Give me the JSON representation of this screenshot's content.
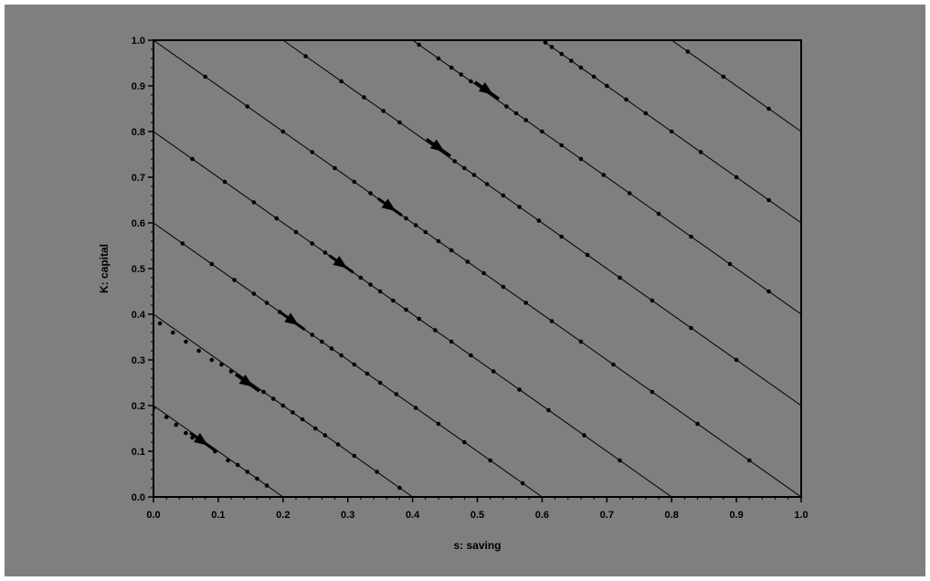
{
  "chart_data": {
    "type": "line",
    "title": "",
    "xlabel": "s: saving",
    "ylabel": "K: capital",
    "xlim": [
      0.0,
      1.0
    ],
    "ylim": [
      0.0,
      1.0
    ],
    "x_ticks": [
      "0.0",
      "0.1",
      "0.2",
      "0.3",
      "0.4",
      "0.5",
      "0.6",
      "0.7",
      "0.8",
      "0.9",
      "1.0"
    ],
    "y_ticks": [
      "0.0",
      "0.1",
      "0.2",
      "0.3",
      "0.4",
      "0.5",
      "0.6",
      "0.7",
      "0.8",
      "0.9",
      "1.0"
    ],
    "grid": false,
    "legend": "none",
    "colors": {
      "background": "#7f7f7f",
      "line": "#000000"
    },
    "series": [
      {
        "start": [
          0.0,
          0.2
        ],
        "end": [
          0.2,
          0.0
        ],
        "points": [
          [
            0.0,
            0.195
          ],
          [
            0.02,
            0.175
          ],
          [
            0.035,
            0.158
          ],
          [
            0.05,
            0.14
          ],
          [
            0.06,
            0.13
          ],
          [
            0.095,
            0.1
          ],
          [
            0.115,
            0.08
          ],
          [
            0.13,
            0.07
          ],
          [
            0.145,
            0.055
          ],
          [
            0.16,
            0.04
          ],
          [
            0.175,
            0.025
          ]
        ],
        "arrows": [
          [
            0.075,
            0.122
          ]
        ]
      },
      {
        "start": [
          0.0,
          0.4
        ],
        "end": [
          0.4,
          0.0
        ],
        "points": [
          [
            0.01,
            0.38
          ],
          [
            0.03,
            0.36
          ],
          [
            0.05,
            0.34
          ],
          [
            0.07,
            0.32
          ],
          [
            0.09,
            0.3
          ],
          [
            0.105,
            0.29
          ],
          [
            0.12,
            0.275
          ],
          [
            0.17,
            0.23
          ],
          [
            0.185,
            0.215
          ],
          [
            0.2,
            0.2
          ],
          [
            0.215,
            0.185
          ],
          [
            0.23,
            0.17
          ],
          [
            0.25,
            0.15
          ],
          [
            0.265,
            0.135
          ],
          [
            0.285,
            0.115
          ],
          [
            0.31,
            0.09
          ],
          [
            0.345,
            0.055
          ],
          [
            0.38,
            0.02
          ]
        ],
        "arrows": [
          [
            0.145,
            0.25
          ]
        ]
      },
      {
        "start": [
          0.0,
          0.6
        ],
        "end": [
          0.6,
          0.0
        ],
        "points": [
          [
            0.045,
            0.555
          ],
          [
            0.09,
            0.51
          ],
          [
            0.125,
            0.475
          ],
          [
            0.155,
            0.445
          ],
          [
            0.175,
            0.425
          ],
          [
            0.195,
            0.405
          ],
          [
            0.245,
            0.355
          ],
          [
            0.26,
            0.34
          ],
          [
            0.275,
            0.325
          ],
          [
            0.29,
            0.31
          ],
          [
            0.31,
            0.29
          ],
          [
            0.33,
            0.27
          ],
          [
            0.35,
            0.25
          ],
          [
            0.375,
            0.225
          ],
          [
            0.405,
            0.195
          ],
          [
            0.44,
            0.16
          ],
          [
            0.48,
            0.12
          ],
          [
            0.52,
            0.08
          ],
          [
            0.57,
            0.03
          ]
        ],
        "arrows": [
          [
            0.215,
            0.385
          ]
        ]
      },
      {
        "start": [
          0.0,
          0.8
        ],
        "end": [
          0.8,
          0.0
        ],
        "points": [
          [
            0.06,
            0.74
          ],
          [
            0.11,
            0.69
          ],
          [
            0.155,
            0.645
          ],
          [
            0.19,
            0.61
          ],
          [
            0.22,
            0.58
          ],
          [
            0.245,
            0.555
          ],
          [
            0.265,
            0.535
          ],
          [
            0.32,
            0.48
          ],
          [
            0.335,
            0.465
          ],
          [
            0.35,
            0.45
          ],
          [
            0.37,
            0.43
          ],
          [
            0.39,
            0.41
          ],
          [
            0.41,
            0.39
          ],
          [
            0.435,
            0.365
          ],
          [
            0.46,
            0.34
          ],
          [
            0.49,
            0.31
          ],
          [
            0.525,
            0.275
          ],
          [
            0.565,
            0.235
          ],
          [
            0.61,
            0.19
          ],
          [
            0.665,
            0.135
          ],
          [
            0.72,
            0.08
          ]
        ],
        "arrows": [
          [
            0.29,
            0.51
          ]
        ]
      },
      {
        "start": [
          0.0,
          1.0
        ],
        "end": [
          1.0,
          0.0
        ],
        "points": [
          [
            0.08,
            0.92
          ],
          [
            0.145,
            0.855
          ],
          [
            0.2,
            0.8
          ],
          [
            0.245,
            0.755
          ],
          [
            0.28,
            0.72
          ],
          [
            0.31,
            0.69
          ],
          [
            0.335,
            0.665
          ],
          [
            0.39,
            0.61
          ],
          [
            0.405,
            0.595
          ],
          [
            0.42,
            0.58
          ],
          [
            0.44,
            0.56
          ],
          [
            0.46,
            0.54
          ],
          [
            0.485,
            0.515
          ],
          [
            0.51,
            0.49
          ],
          [
            0.54,
            0.46
          ],
          [
            0.575,
            0.425
          ],
          [
            0.615,
            0.385
          ],
          [
            0.66,
            0.34
          ],
          [
            0.71,
            0.29
          ],
          [
            0.77,
            0.23
          ],
          [
            0.84,
            0.16
          ],
          [
            0.92,
            0.08
          ]
        ],
        "arrows": [
          [
            0.365,
            0.635
          ]
        ]
      },
      {
        "start": [
          0.2,
          1.0
        ],
        "end": [
          1.0,
          0.2
        ],
        "points": [
          [
            0.235,
            0.965
          ],
          [
            0.29,
            0.91
          ],
          [
            0.325,
            0.875
          ],
          [
            0.355,
            0.845
          ],
          [
            0.38,
            0.82
          ],
          [
            0.465,
            0.735
          ],
          [
            0.48,
            0.72
          ],
          [
            0.495,
            0.705
          ],
          [
            0.515,
            0.685
          ],
          [
            0.54,
            0.66
          ],
          [
            0.565,
            0.635
          ],
          [
            0.595,
            0.605
          ],
          [
            0.63,
            0.57
          ],
          [
            0.67,
            0.53
          ],
          [
            0.72,
            0.48
          ],
          [
            0.77,
            0.43
          ],
          [
            0.83,
            0.37
          ],
          [
            0.9,
            0.3
          ]
        ],
        "arrows": [
          [
            0.44,
            0.765
          ]
        ]
      },
      {
        "start": [
          0.4,
          1.0
        ],
        "end": [
          1.0,
          0.4
        ],
        "points": [
          [
            0.41,
            0.99
          ],
          [
            0.44,
            0.96
          ],
          [
            0.46,
            0.94
          ],
          [
            0.475,
            0.925
          ],
          [
            0.49,
            0.91
          ],
          [
            0.545,
            0.855
          ],
          [
            0.56,
            0.84
          ],
          [
            0.575,
            0.825
          ],
          [
            0.6,
            0.8
          ],
          [
            0.63,
            0.77
          ],
          [
            0.66,
            0.74
          ],
          [
            0.695,
            0.705
          ],
          [
            0.735,
            0.665
          ],
          [
            0.78,
            0.62
          ],
          [
            0.83,
            0.57
          ],
          [
            0.89,
            0.51
          ],
          [
            0.95,
            0.45
          ]
        ],
        "arrows": [
          [
            0.515,
            0.89
          ]
        ]
      },
      {
        "start": [
          0.6,
          1.0
        ],
        "end": [
          1.0,
          0.6
        ],
        "points": [
          [
            0.605,
            0.995
          ],
          [
            0.615,
            0.985
          ],
          [
            0.63,
            0.97
          ],
          [
            0.645,
            0.955
          ],
          [
            0.66,
            0.94
          ],
          [
            0.68,
            0.92
          ],
          [
            0.7,
            0.9
          ],
          [
            0.73,
            0.87
          ],
          [
            0.76,
            0.84
          ],
          [
            0.8,
            0.8
          ],
          [
            0.845,
            0.755
          ],
          [
            0.9,
            0.7
          ],
          [
            0.95,
            0.65
          ]
        ],
        "arrows": []
      },
      {
        "start": [
          0.8,
          1.0
        ],
        "end": [
          1.0,
          0.8
        ],
        "points": [
          [
            0.825,
            0.975
          ],
          [
            0.88,
            0.92
          ],
          [
            0.95,
            0.85
          ]
        ],
        "arrows": []
      }
    ]
  }
}
